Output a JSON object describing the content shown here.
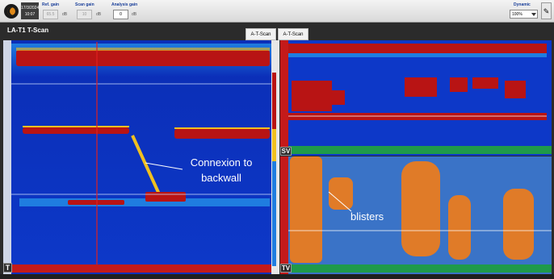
{
  "toolbar": {
    "date": "17/3/2024",
    "time": "10:07",
    "ref_gain": {
      "label": "Ref. gain",
      "value": "65.5",
      "unit": "dB"
    },
    "scan_gain": {
      "label": "Scan gain",
      "value": "10",
      "unit": "dB"
    },
    "analysis_gain": {
      "label": "Analysis gain",
      "value": "0",
      "unit": "dB"
    },
    "dynamic": {
      "label": "Dynamic",
      "value": "100%"
    }
  },
  "scan_title": "LA-T1 T-Scan",
  "tabs": [
    "A-T-Scan",
    "A-T-Scan"
  ],
  "views": {
    "t": "T",
    "sv": "SV",
    "tv": "TV"
  },
  "annotations": {
    "connexion": "Connexion to\nbackwall",
    "blisters": "blisters"
  },
  "colors": {
    "background": "#2b2b2b",
    "scan_low": "#0b2fb8",
    "scan_mid": "#1f7de0",
    "echo_high": "#b81414",
    "echo_mid": "#f0c020",
    "cursor": "#e02020",
    "ruler_green": "#1f9a4a"
  },
  "icons": {
    "logo": "app-logo-icon",
    "tool": "tool-icon"
  }
}
